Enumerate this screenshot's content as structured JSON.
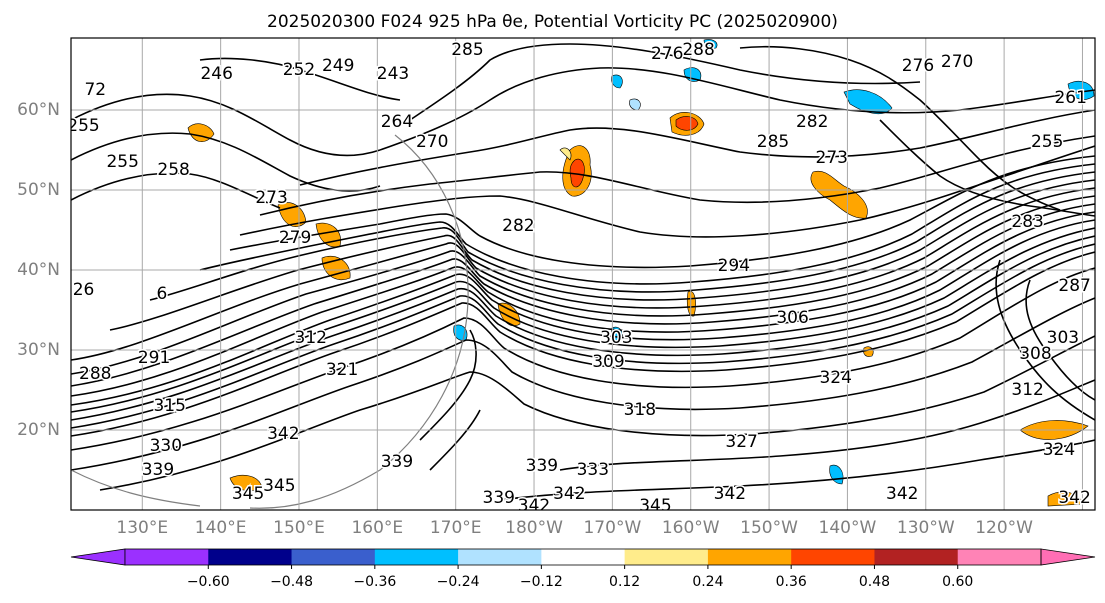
{
  "title": "2025020300 F024 925 hPa θe, Potential Vorticity PC (2025020900)",
  "map": {
    "lat_labels": [
      "60°N",
      "50°N",
      "40°N",
      "30°N",
      "20°N"
    ],
    "lat_values": [
      60,
      50,
      40,
      30,
      20
    ],
    "lon_labels": [
      "130°E",
      "140°E",
      "150°E",
      "160°E",
      "170°E",
      "180°W",
      "170°W",
      "160°W",
      "150°W",
      "140°W",
      "130°W",
      "120°W"
    ],
    "lon_values": [
      130,
      140,
      150,
      160,
      170,
      180,
      190,
      200,
      210,
      220,
      230,
      240
    ],
    "lon_range": [
      120.9,
      251.6
    ],
    "lat_range": [
      10,
      69
    ],
    "gridlines": true,
    "contour_labels": [
      {
        "text": "285",
        "lon": 171.5,
        "lat": 67.5
      },
      {
        "text": "288",
        "lon": 201,
        "lat": 67.5
      },
      {
        "text": "276",
        "lon": 197,
        "lat": 67
      },
      {
        "text": "276",
        "lon": 229,
        "lat": 65.5
      },
      {
        "text": "270",
        "lon": 234,
        "lat": 66
      },
      {
        "text": "243",
        "lon": 162,
        "lat": 64.5
      },
      {
        "text": "252",
        "lon": 150,
        "lat": 65
      },
      {
        "text": "249",
        "lon": 155,
        "lat": 65.5
      },
      {
        "text": "246",
        "lon": 139.5,
        "lat": 64.5
      },
      {
        "text": "264",
        "lon": 162.5,
        "lat": 58.5
      },
      {
        "text": "270",
        "lon": 167,
        "lat": 56
      },
      {
        "text": "258",
        "lon": 134,
        "lat": 52.5
      },
      {
        "text": "255",
        "lon": 127.5,
        "lat": 53.5
      },
      {
        "text": "255",
        "lon": 122.5,
        "lat": 58
      },
      {
        "text": "285",
        "lon": 210.5,
        "lat": 56
      },
      {
        "text": "282",
        "lon": 215.5,
        "lat": 58.5
      },
      {
        "text": "273",
        "lon": 218,
        "lat": 54
      },
      {
        "text": "255",
        "lon": 245.5,
        "lat": 56
      },
      {
        "text": "261",
        "lon": 248.5,
        "lat": 61.5
      },
      {
        "text": "273",
        "lon": 146.5,
        "lat": 49
      },
      {
        "text": "279",
        "lon": 149.5,
        "lat": 44
      },
      {
        "text": "282",
        "lon": 178,
        "lat": 45.5
      },
      {
        "text": "294",
        "lon": 205.5,
        "lat": 40.5
      },
      {
        "text": "306",
        "lon": 213,
        "lat": 34
      },
      {
        "text": "303",
        "lon": 190.5,
        "lat": 31.5
      },
      {
        "text": "309",
        "lon": 189.5,
        "lat": 28.5
      },
      {
        "text": "312",
        "lon": 151.5,
        "lat": 31.5
      },
      {
        "text": "321",
        "lon": 155.5,
        "lat": 27.5
      },
      {
        "text": "291",
        "lon": 131.5,
        "lat": 29
      },
      {
        "text": "288",
        "lon": 124,
        "lat": 27
      },
      {
        "text": "315",
        "lon": 133.5,
        "lat": 23
      },
      {
        "text": "330",
        "lon": 133,
        "lat": 18
      },
      {
        "text": "342",
        "lon": 148,
        "lat": 19.5
      },
      {
        "text": "339",
        "lon": 132,
        "lat": 15
      },
      {
        "text": "339",
        "lon": 162.5,
        "lat": 16
      },
      {
        "text": "318",
        "lon": 193.5,
        "lat": 22.5
      },
      {
        "text": "324",
        "lon": 218.5,
        "lat": 26.5
      },
      {
        "text": "327",
        "lon": 206.5,
        "lat": 18.5
      },
      {
        "text": "333",
        "lon": 187.5,
        "lat": 15
      },
      {
        "text": "339",
        "lon": 181,
        "lat": 15.5
      },
      {
        "text": "339",
        "lon": 175.5,
        "lat": 11.5
      },
      {
        "text": "342",
        "lon": 184.5,
        "lat": 12
      },
      {
        "text": "342",
        "lon": 180,
        "lat": 10.5
      },
      {
        "text": "345",
        "lon": 195.5,
        "lat": 10.5
      },
      {
        "text": "342",
        "lon": 205,
        "lat": 12
      },
      {
        "text": "342",
        "lon": 227,
        "lat": 12
      },
      {
        "text": "345",
        "lon": 143.5,
        "lat": 12
      },
      {
        "text": "345",
        "lon": 147.5,
        "lat": 13
      },
      {
        "text": "342",
        "lon": 249,
        "lat": 11.5
      },
      {
        "text": "324",
        "lon": 247,
        "lat": 17.5
      },
      {
        "text": "308",
        "lon": 244,
        "lat": 29.5
      },
      {
        "text": "312",
        "lon": 243,
        "lat": 25
      },
      {
        "text": "287",
        "lon": 249,
        "lat": 38
      },
      {
        "text": "283",
        "lon": 243,
        "lat": 46
      },
      {
        "text": "26",
        "lon": 122.5,
        "lat": 37.5
      },
      {
        "text": "6",
        "lon": 132.5,
        "lat": 37
      },
      {
        "text": "72",
        "lon": 124,
        "lat": 62.5
      },
      {
        "text": "303",
        "lon": 247.5,
        "lat": 31.5
      }
    ]
  },
  "colorbar": {
    "tick_labels": [
      "−0.60",
      "−0.48",
      "−0.36",
      "−0.24",
      "−0.12",
      "0.12",
      "0.24",
      "0.36",
      "0.48",
      "0.60"
    ],
    "bin_colors": [
      "#9b30ff",
      "#00008b",
      "#3a5fcd",
      "#00bfff",
      "#b0e2ff",
      "#ffffff",
      "#ffec8b",
      "#ffa500",
      "#ff4500",
      "#b22222",
      "#ff83b6",
      "#ff6eb4"
    ],
    "extend": "both"
  },
  "colors": {
    "contour": "#000000",
    "pv_positive_light": "#ffec8b",
    "pv_positive_mid": "#ffa500",
    "pv_positive_high": "#ff4500",
    "pv_negative_light": "#b0e2ff",
    "pv_negative_mid": "#00bfff",
    "axis_label": "#7f7f7f",
    "circle": "#808080"
  }
}
